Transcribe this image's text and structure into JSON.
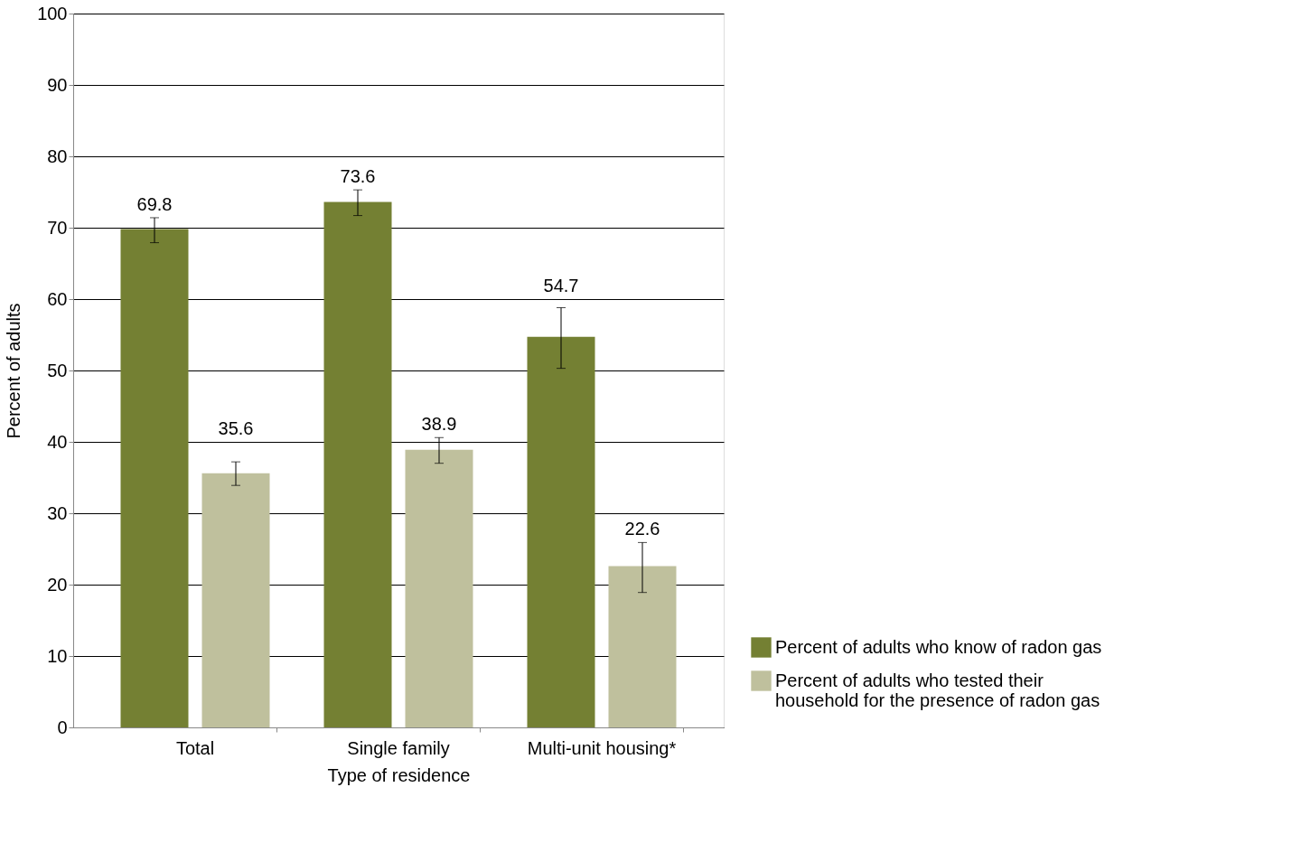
{
  "chart_data": {
    "type": "bar",
    "xlabel": "Type of residence",
    "ylabel": "Percent of adults",
    "categories": [
      "Total",
      "Single family",
      "Multi-unit housing*"
    ],
    "series": [
      {
        "name": "Percent of adults who know of radon gas",
        "color": "#748033",
        "values": [
          69.8,
          73.6,
          54.7
        ],
        "errors": [
          [
            67.9,
            71.4
          ],
          [
            71.7,
            75.3
          ],
          [
            50.3,
            58.8
          ]
        ]
      },
      {
        "name": "Percent of adults who tested their household for the presence of radon gas",
        "color": "#bfc09d",
        "values": [
          35.6,
          38.9,
          22.6
        ],
        "errors": [
          [
            33.9,
            37.2
          ],
          [
            37.0,
            40.6
          ],
          [
            18.9,
            25.9
          ]
        ]
      }
    ],
    "ylim": [
      0,
      100
    ],
    "yticks": [
      0,
      10,
      20,
      30,
      40,
      50,
      60,
      70,
      80,
      90,
      100
    ],
    "grid": "y",
    "legend": "bottom right",
    "data_labels": true
  }
}
